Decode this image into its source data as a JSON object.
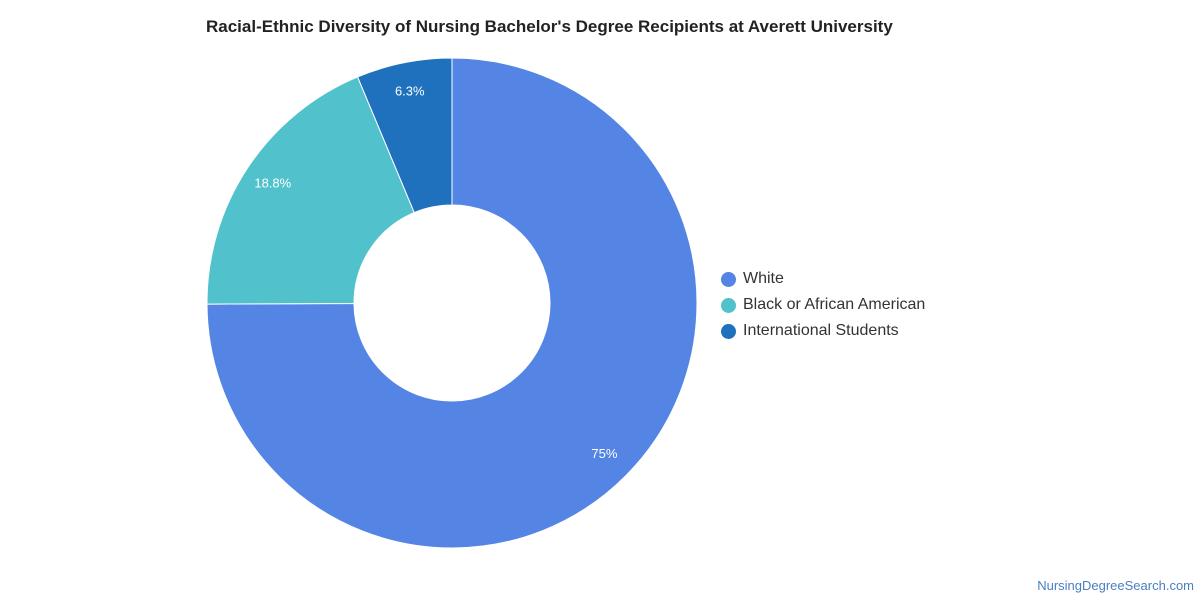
{
  "chart_data": {
    "type": "pie",
    "title": "Racial-Ethnic Diversity of Nursing Bachelor's Degree Recipients at Averett University",
    "legend_position": "right",
    "series": [
      {
        "name": "White",
        "value": 75,
        "label": "75%",
        "color": "#5585e4"
      },
      {
        "name": "Black or African American",
        "value": 18.8,
        "label": "18.8%",
        "color": "#51c1cc"
      },
      {
        "name": "International Students",
        "value": 6.3,
        "label": "6.3%",
        "color": "#1f71bd"
      }
    ]
  },
  "footer": {
    "source": "NursingDegreeSearch.com"
  }
}
